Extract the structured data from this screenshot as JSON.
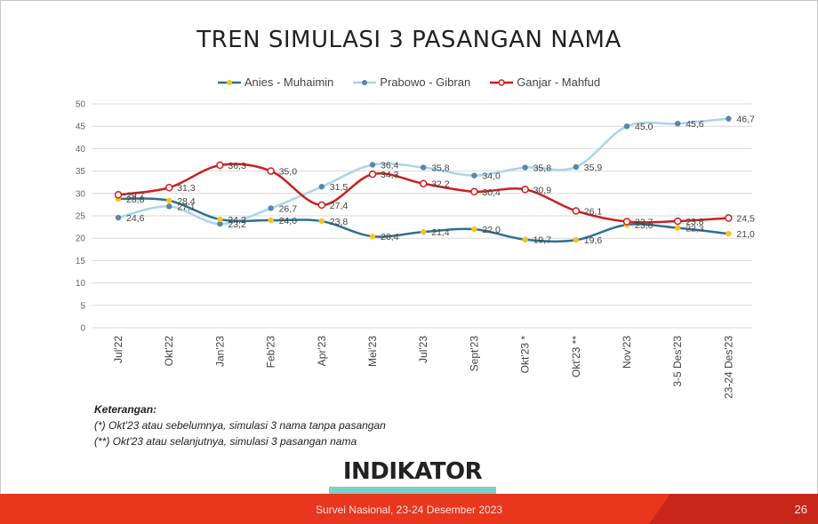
{
  "title": "TREN SIMULASI 3 PASANGAN NAMA",
  "chart_data": {
    "type": "line",
    "title": "TREN SIMULASI 3 PASANGAN NAMA",
    "categories": [
      "Jul'22",
      "Okt'22",
      "Jan'23",
      "Feb'23",
      "Apr'23",
      "Mei'23",
      "Jul'23",
      "Sept'23",
      "Okt'23 *",
      "Okt'23 **",
      "Nov'23",
      "3-5 Des'23",
      "23-24 Des'23"
    ],
    "ylim": [
      0,
      50
    ],
    "yticks": [
      "0",
      "5",
      "10",
      "15",
      "20",
      "25",
      "30",
      "35",
      "40",
      "45",
      "50"
    ],
    "grid": true,
    "legend_position": "top",
    "series": [
      {
        "name": "Anies - Muhaimin",
        "color": "#2e6f92",
        "marker_color": "#f5c518",
        "marker": "filled",
        "values": [
          28.8,
          28.4,
          24.2,
          24.0,
          23.8,
          20.4,
          21.4,
          22.0,
          19.7,
          19.6,
          23.0,
          22.3,
          21.0
        ],
        "labels": [
          "28,8",
          "28,4",
          "24,2",
          "24,0",
          "23,8",
          "20,4",
          "21,4",
          "22,0",
          "19,7",
          "19,6",
          "23,0",
          "22,3",
          "21,0"
        ]
      },
      {
        "name": "Prabowo - Gibran",
        "color": "#a9d4ea",
        "marker_color": "#5b86a6",
        "marker": "filled",
        "values": [
          24.6,
          27.1,
          23.2,
          26.7,
          31.5,
          36.4,
          35.8,
          34.0,
          35.8,
          35.9,
          45.0,
          45.6,
          46.7
        ],
        "labels": [
          "24,6",
          "27,1",
          "23,2",
          "26,7",
          "31,5",
          "36,4",
          "35,8",
          "34,0",
          "35,8",
          "35,9",
          "45,0",
          "45,6",
          "46,7"
        ]
      },
      {
        "name": "Ganjar - Mahfud",
        "color": "#cc1f1f",
        "marker_color": "#cc1f1f",
        "marker": "hollow",
        "values": [
          29.7,
          31.3,
          36.3,
          35.0,
          27.4,
          34.3,
          32.2,
          30.4,
          30.9,
          26.1,
          23.7,
          23.8,
          24.5
        ],
        "labels": [
          "29,7",
          "31,3",
          "36,3",
          "35,0",
          "27,4",
          "34,3",
          "32,2",
          "30,4",
          "30,9",
          "26,1",
          "23,7",
          "23,8",
          "24,5"
        ]
      }
    ]
  },
  "notes": {
    "heading": "Keterangan:",
    "line1": "(*) Okt'23 atau sebelumnya, simulasi 3 nama tanpa pasangan",
    "line2": "(**) Okt'23 atau selanjutnya, simulasi 3 pasangan nama"
  },
  "logo": "INDIKATOR",
  "footer": {
    "text": "Survei Nasional, 23-24 Desember 2023",
    "page": "26"
  }
}
